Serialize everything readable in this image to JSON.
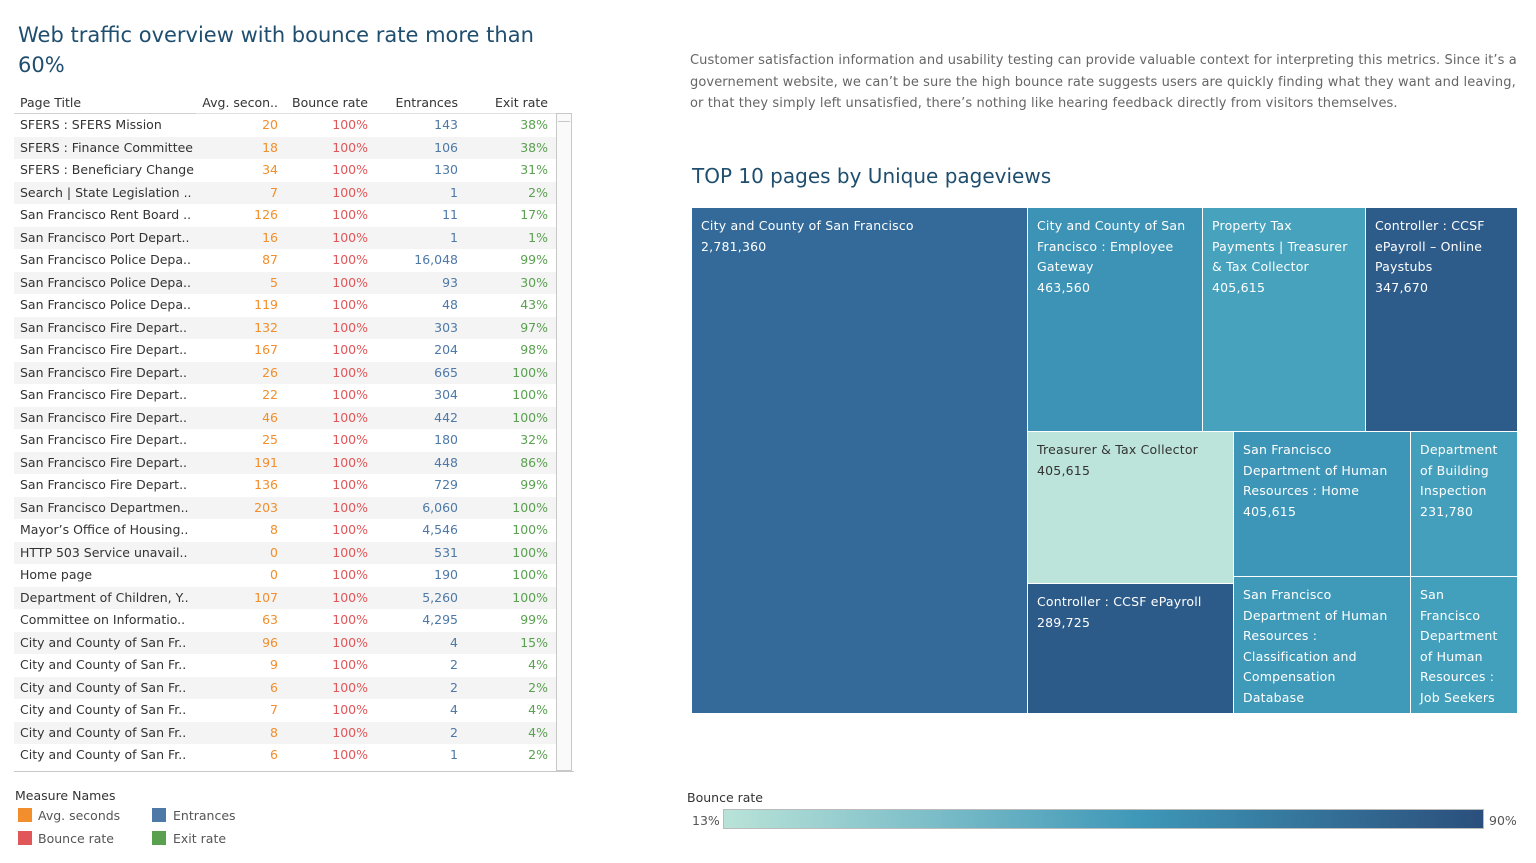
{
  "title": "Web traffic overview with bounce rate more than 60%",
  "note": "Customer satisfaction information and usability testing can provide valuable context for interpreting this metrics. Since it’s a governement website, we can’t be sure the high bounce rate suggests users are quickly finding what they want and leaving, or that they simply left unsatisfied, there’s nothing like hearing feedback directly from visitors themselves.",
  "table": {
    "headers": [
      "Page Title",
      "Avg. secon..",
      "Bounce rate",
      "Entrances",
      "Exit rate"
    ],
    "rows": [
      [
        "SFERS : SFERS Mission",
        "20",
        "100%",
        "143",
        "38%"
      ],
      [
        "SFERS : Finance Committee",
        "18",
        "100%",
        "106",
        "38%"
      ],
      [
        "SFERS : Beneficiary Change",
        "34",
        "100%",
        "130",
        "31%"
      ],
      [
        "Search | State Legislation ..",
        "7",
        "100%",
        "1",
        "2%"
      ],
      [
        "San Francisco Rent Board ..",
        "126",
        "100%",
        "11",
        "17%"
      ],
      [
        "San Francisco Port Depart..",
        "16",
        "100%",
        "1",
        "1%"
      ],
      [
        "San Francisco Police Depa..",
        "87",
        "100%",
        "16,048",
        "99%"
      ],
      [
        "San Francisco Police Depa..",
        "5",
        "100%",
        "93",
        "30%"
      ],
      [
        "San Francisco Police Depa..",
        "119",
        "100%",
        "48",
        "43%"
      ],
      [
        "San Francisco Fire Depart..",
        "132",
        "100%",
        "303",
        "97%"
      ],
      [
        "San Francisco Fire Depart..",
        "167",
        "100%",
        "204",
        "98%"
      ],
      [
        "San Francisco Fire Depart..",
        "26",
        "100%",
        "665",
        "100%"
      ],
      [
        "San Francisco Fire Depart..",
        "22",
        "100%",
        "304",
        "100%"
      ],
      [
        "San Francisco Fire Depart..",
        "46",
        "100%",
        "442",
        "100%"
      ],
      [
        "San Francisco Fire Depart..",
        "25",
        "100%",
        "180",
        "32%"
      ],
      [
        "San Francisco Fire Depart..",
        "191",
        "100%",
        "448",
        "86%"
      ],
      [
        "San Francisco Fire Depart..",
        "136",
        "100%",
        "729",
        "99%"
      ],
      [
        "San Francisco Departmen..",
        "203",
        "100%",
        "6,060",
        "100%"
      ],
      [
        "Mayor’s Office of Housing..",
        "8",
        "100%",
        "4,546",
        "100%"
      ],
      [
        "HTTP 503 Service unavail..",
        "0",
        "100%",
        "531",
        "100%"
      ],
      [
        "Home page",
        "0",
        "100%",
        "190",
        "100%"
      ],
      [
        "Department of Children, Y..",
        "107",
        "100%",
        "5,260",
        "100%"
      ],
      [
        "Committee on Informatio..",
        "63",
        "100%",
        "4,295",
        "99%"
      ],
      [
        "City and County of San Fr..",
        "96",
        "100%",
        "4",
        "15%"
      ],
      [
        "City and County of San Fr..",
        "9",
        "100%",
        "2",
        "4%"
      ],
      [
        "City and County of San Fr..",
        "6",
        "100%",
        "2",
        "2%"
      ],
      [
        "City and County of San Fr..",
        "7",
        "100%",
        "4",
        "4%"
      ],
      [
        "City and County of San Fr..",
        "8",
        "100%",
        "2",
        "4%"
      ],
      [
        "City and County of San Fr..",
        "6",
        "100%",
        "1",
        "2%"
      ]
    ]
  },
  "measure_legend": {
    "title": "Measure Names",
    "items": [
      {
        "label": "Avg. seconds",
        "color": "#f28e2b"
      },
      {
        "label": "Entrances",
        "color": "#4e79a7"
      },
      {
        "label": "Bounce rate",
        "color": "#e15759"
      },
      {
        "label": "Exit rate",
        "color": "#59a14f"
      }
    ]
  },
  "treemap": {
    "title": "TOP 10 pages by Unique pageviews",
    "tiles": [
      {
        "label": "City and County of San Francisco",
        "value": "2,781,360",
        "color": "#336a99"
      },
      {
        "label": "City and County of San Francisco : Employee Gateway",
        "value": "463,560",
        "color": "#3c93b6"
      },
      {
        "label": "Property Tax Payments | Treasurer & Tax Collector",
        "value": "405,615",
        "color": "#47a3bd"
      },
      {
        "label": "Controller : CCSF ePayroll – Online Paystubs",
        "value": "347,670",
        "color": "#2e5c8a"
      },
      {
        "label": "Treasurer & Tax Collector",
        "value": "405,615",
        "color": "#bce4da"
      },
      {
        "label": "San Francisco Department of Human Resources : Home",
        "value": "405,615",
        "color": "#3d96b7"
      },
      {
        "label": "Department of Building Inspection",
        "value": "231,780",
        "color": "#449fbc"
      },
      {
        "label": "Controller : CCSF ePayroll",
        "value": "289,725",
        "color": "#2d5b89"
      },
      {
        "label": "San Francisco Department of Human Resources : Classification and Compensation Database",
        "value": "",
        "color": "#3f9aba"
      },
      {
        "label": "San Francisco Department of Human Resources : Job Seekers",
        "value": "",
        "color": "#43a0bd"
      }
    ]
  },
  "bounce_legend": {
    "title": "Bounce rate",
    "min": "13%",
    "max": "90%",
    "color_low": "#b9e3d8",
    "color_mid": "#3e97b8",
    "color_high": "#2b4f7c"
  }
}
